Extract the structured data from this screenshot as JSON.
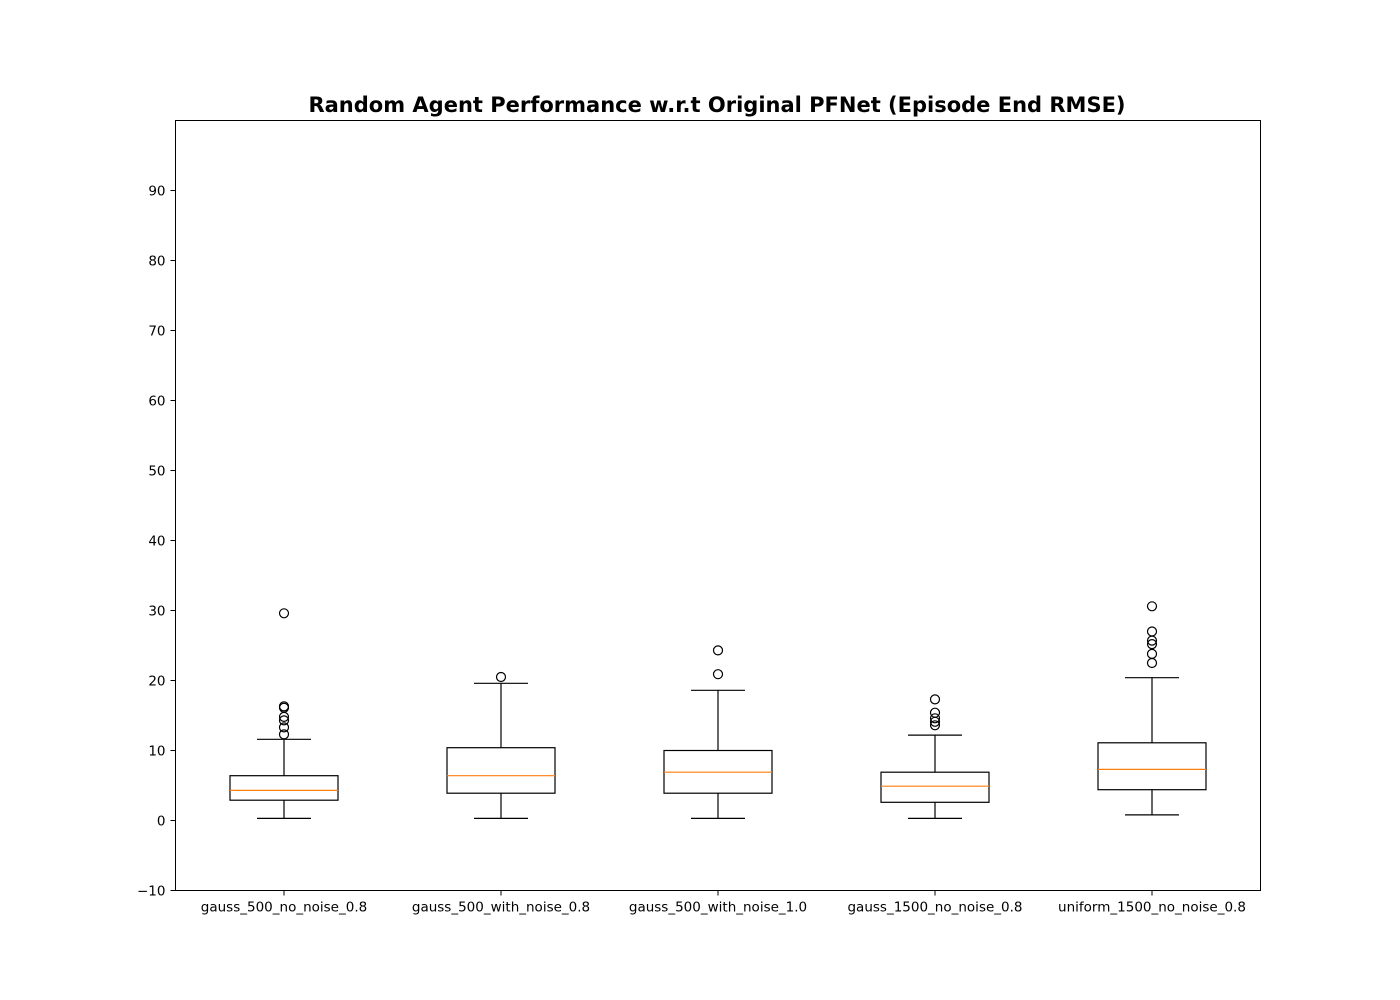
{
  "chart_data": {
    "type": "box",
    "title": "Random Agent Performance w.r.t Original PFNet (Episode End RMSE)",
    "xlabel": "",
    "ylabel": "",
    "ylim": [
      -10,
      100
    ],
    "yticks": [
      -10,
      0,
      10,
      20,
      30,
      40,
      50,
      60,
      70,
      80,
      90
    ],
    "grid": false,
    "categories": [
      "gauss_500_no_noise_0.8",
      "gauss_500_with_noise_0.8",
      "gauss_500_with_noise_1.0",
      "gauss_1500_no_noise_0.8",
      "uniform_1500_no_noise_0.8"
    ],
    "series": [
      {
        "whisker_low": 0.3,
        "q1": 2.9,
        "median": 4.3,
        "q3": 6.4,
        "whisker_high": 11.6,
        "outliers": [
          12.3,
          13.3,
          14.3,
          14.8,
          16.1,
          16.3,
          29.6
        ]
      },
      {
        "whisker_low": 0.3,
        "q1": 3.9,
        "median": 6.4,
        "q3": 10.4,
        "whisker_high": 19.6,
        "outliers": [
          20.5
        ]
      },
      {
        "whisker_low": 0.3,
        "q1": 3.9,
        "median": 6.9,
        "q3": 10.0,
        "whisker_high": 18.6,
        "outliers": [
          20.9,
          24.3
        ]
      },
      {
        "whisker_low": 0.3,
        "q1": 2.6,
        "median": 4.9,
        "q3": 6.9,
        "whisker_high": 12.2,
        "outliers": [
          13.6,
          14.1,
          14.6,
          15.4,
          17.3
        ]
      },
      {
        "whisker_low": 0.8,
        "q1": 4.4,
        "median": 7.3,
        "q3": 11.1,
        "whisker_high": 20.4,
        "outliers": [
          22.5,
          23.8,
          25.2,
          25.7,
          27.0,
          30.6
        ]
      }
    ],
    "colors": {
      "box": "#000000",
      "median": "#ff7f0e",
      "outlier": "#000000"
    }
  }
}
